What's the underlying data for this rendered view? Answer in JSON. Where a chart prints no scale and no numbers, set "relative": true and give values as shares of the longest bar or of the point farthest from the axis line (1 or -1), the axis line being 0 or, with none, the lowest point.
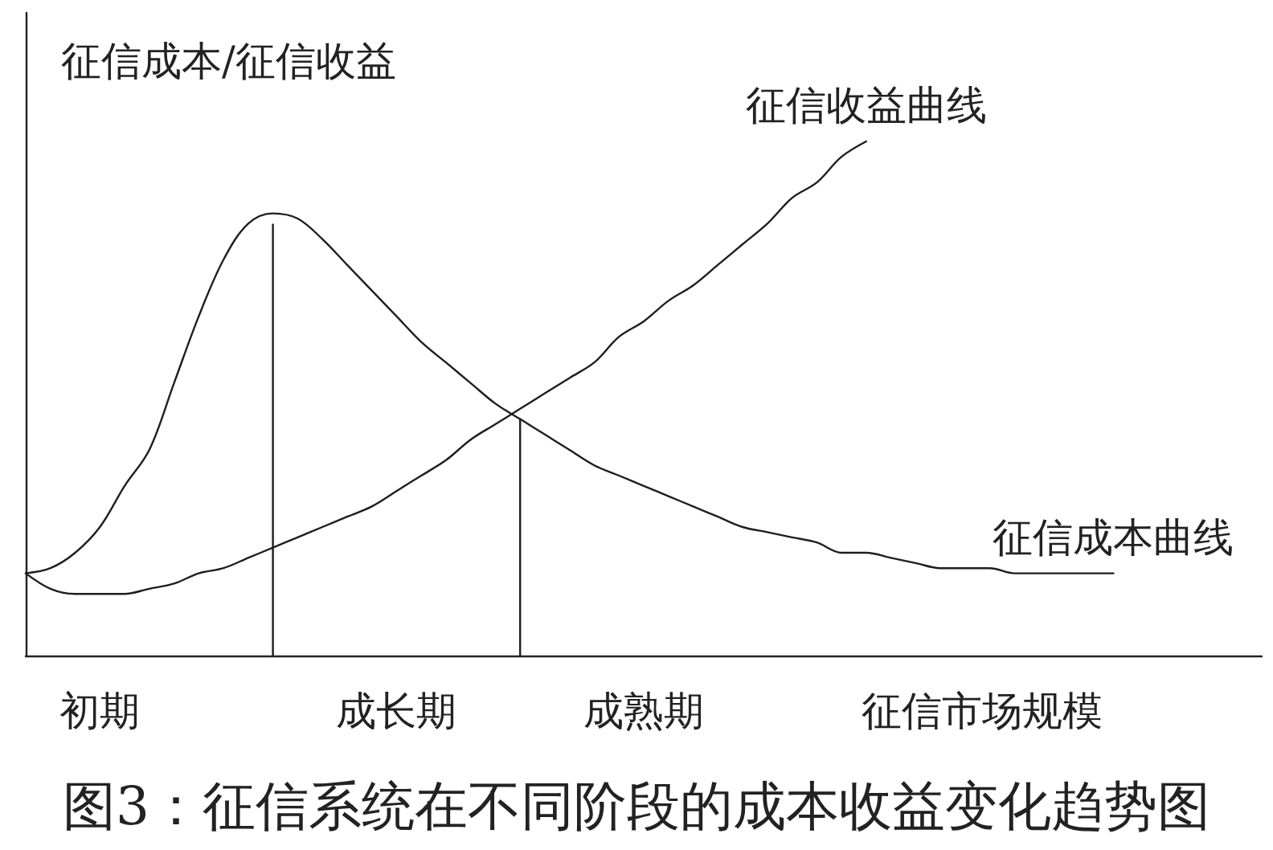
{
  "chart_data": {
    "type": "line",
    "title": "图3：征信系统在不同阶段的成本收益变化趋势图",
    "xlabel": "征信市场规模",
    "ylabel": "征信成本/征信收益",
    "relative": true,
    "categories": [
      null,
      null,
      null,
      "初期",
      null,
      null,
      null,
      null,
      null,
      null,
      null,
      null,
      null,
      null,
      null,
      "成长期",
      null,
      null,
      null,
      null,
      null,
      null,
      null,
      null,
      null,
      "成熟期",
      null,
      null,
      null,
      null,
      null,
      null,
      null,
      null,
      null,
      null,
      null,
      null,
      null,
      null,
      null,
      null,
      null,
      null,
      null,
      null,
      null,
      null,
      null,
      null,
      null
    ],
    "series": [
      {
        "name": "征信收益曲线",
        "color": "#1e1e1e",
        "values": [
          0.16,
          0.13,
          0.12,
          0.12,
          0.12,
          0.13,
          0.14,
          0.16,
          0.17,
          0.19,
          0.21,
          0.23,
          0.25,
          0.27,
          0.29,
          0.32,
          0.35,
          0.38,
          0.42,
          0.45,
          0.48,
          0.51,
          0.54,
          0.57,
          0.62,
          0.65,
          0.69,
          0.72,
          0.76,
          0.8,
          0.84,
          0.89,
          0.92,
          0.97,
          1,
          null,
          null,
          null,
          null,
          null,
          null,
          null,
          null,
          null,
          null,
          null,
          null,
          null,
          null,
          null,
          null
        ]
      },
      {
        "name": "征信成本曲线",
        "color": "#1e1e1e",
        "values": [
          0.16,
          0.17,
          0.2,
          0.25,
          0.33,
          0.4,
          0.53,
          0.66,
          0.77,
          0.84,
          0.86,
          0.85,
          0.81,
          0.76,
          0.71,
          0.66,
          0.61,
          0.57,
          0.53,
          0.49,
          0.46,
          0.43,
          0.4,
          0.37,
          0.35,
          0.33,
          0.31,
          0.29,
          0.27,
          0.25,
          0.24,
          0.23,
          0.22,
          0.2,
          0.2,
          0.19,
          0.18,
          0.17,
          0.17,
          0.17,
          0.16,
          0.16,
          0.16,
          0.16,
          0.16,
          null,
          null,
          null,
          null,
          null,
          null
        ]
      },
      {
        "type": "bar",
        "color": "#1e1e1e",
        "values": [
          null,
          null,
          null,
          null,
          null,
          null,
          null,
          null,
          null,
          null,
          0.84,
          null,
          null,
          null,
          null,
          null,
          null,
          null,
          null,
          null,
          0.46,
          null,
          null,
          null,
          null,
          null,
          null,
          null,
          null,
          null,
          null,
          null,
          null,
          null,
          null,
          null,
          null,
          null,
          null,
          null,
          null,
          null,
          null,
          null,
          null,
          null,
          null,
          null,
          null,
          null,
          null
        ]
      }
    ],
    "legend": false,
    "grid": false,
    "marker": "none"
  }
}
